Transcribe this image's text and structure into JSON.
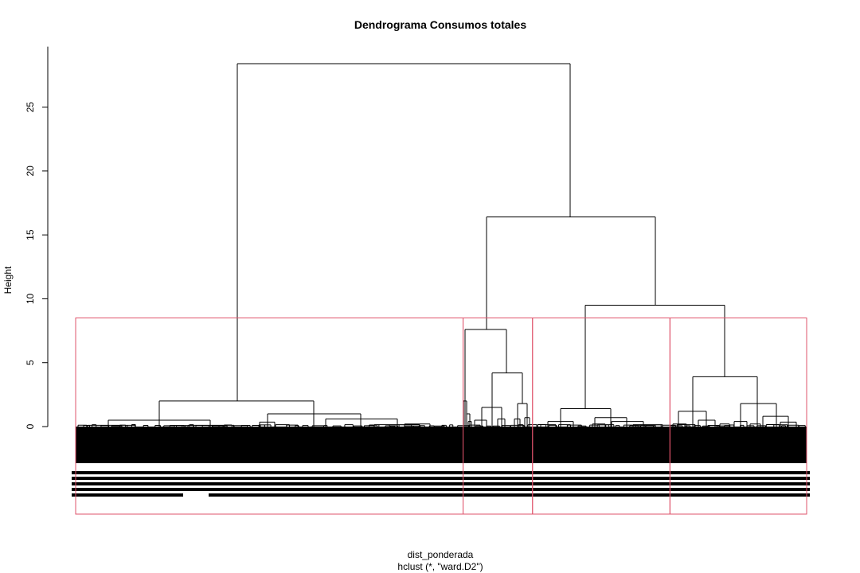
{
  "chart_data": {
    "type": "dendrogram",
    "title": "Dendrograma Consumos totales",
    "xlabel": "dist_ponderada",
    "sublabel": "hclust (*, \"ward.D2\")",
    "ylabel": "Height",
    "ylim": [
      0,
      28.5
    ],
    "yticks": [
      0,
      5,
      10,
      15,
      20,
      25
    ],
    "ytick_labels": [
      "0",
      "5",
      "10",
      "15",
      "20",
      "25"
    ],
    "method": "ward.D2",
    "root_height": 28.4,
    "merge_heights": [
      28.4,
      16.4,
      9.5,
      7.6,
      4.2,
      3.9,
      2.0,
      1.8,
      1.4,
      1.1
    ],
    "k_clusters": 4,
    "cut_height": 8.5,
    "cluster_box_color": "#DF536B",
    "line_color": "#000000",
    "cluster_fractions": [
      0.53,
      0.095,
      0.188,
      0.187
    ]
  }
}
